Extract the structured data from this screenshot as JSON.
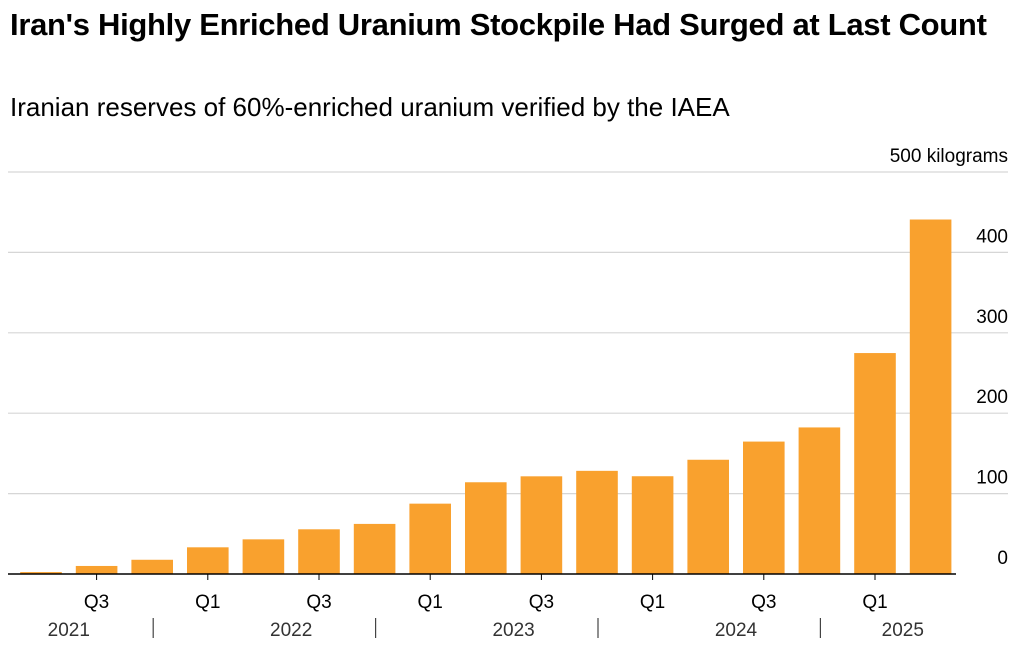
{
  "header": {
    "title": "Iran's Highly Enriched Uranium Stockpile Had Surged at Last Count",
    "subtitle": "Iranian reserves of 60%-enriched uranium verified by the IAEA"
  },
  "colors": {
    "bar": "#F9A12E",
    "grid": "#d6d6d6",
    "baseline": "#000000"
  },
  "chart_data": {
    "type": "bar",
    "unit_label": "500 kilograms",
    "categories": [
      "2021 Q2",
      "2021 Q3",
      "2021 Q4",
      "2022 Q1",
      "2022 Q2",
      "2022 Q3",
      "2022 Q4",
      "2023 Q1",
      "2023 Q2",
      "2023 Q3",
      "2023 Q4",
      "2024 Q1",
      "2024 Q2",
      "2024 Q3",
      "2024 Q4",
      "2025 Q1",
      "2025 Q2"
    ],
    "values": [
      2.4,
      10,
      17.7,
      33.2,
      43.1,
      55.6,
      62.3,
      87.5,
      114.1,
      121.5,
      128.3,
      121.6,
      142.1,
      164.7,
      182.3,
      274.8,
      440.9
    ],
    "ylim": [
      0,
      500
    ],
    "yticks": [
      0,
      100,
      200,
      300,
      400
    ],
    "ytick_labels": [
      "0",
      "100",
      "200",
      "300",
      "400"
    ],
    "x_tick_labels": [
      {
        "label": "Q3",
        "index": 1
      },
      {
        "label": "Q1",
        "index": 3
      },
      {
        "label": "Q3",
        "index": 5
      },
      {
        "label": "Q1",
        "index": 7
      },
      {
        "label": "Q3",
        "index": 9
      },
      {
        "label": "Q1",
        "index": 11
      },
      {
        "label": "Q3",
        "index": 13
      },
      {
        "label": "Q1",
        "index": 15
      }
    ],
    "year_labels": [
      {
        "label": "2021",
        "index": 0.5
      },
      {
        "label": "2022",
        "index": 4.5
      },
      {
        "label": "2023",
        "index": 8.5
      },
      {
        "label": "2024",
        "index": 12.5
      },
      {
        "label": "2025",
        "index": 15.5
      }
    ],
    "year_separators": [
      2,
      6,
      10,
      14
    ],
    "grid": true
  }
}
